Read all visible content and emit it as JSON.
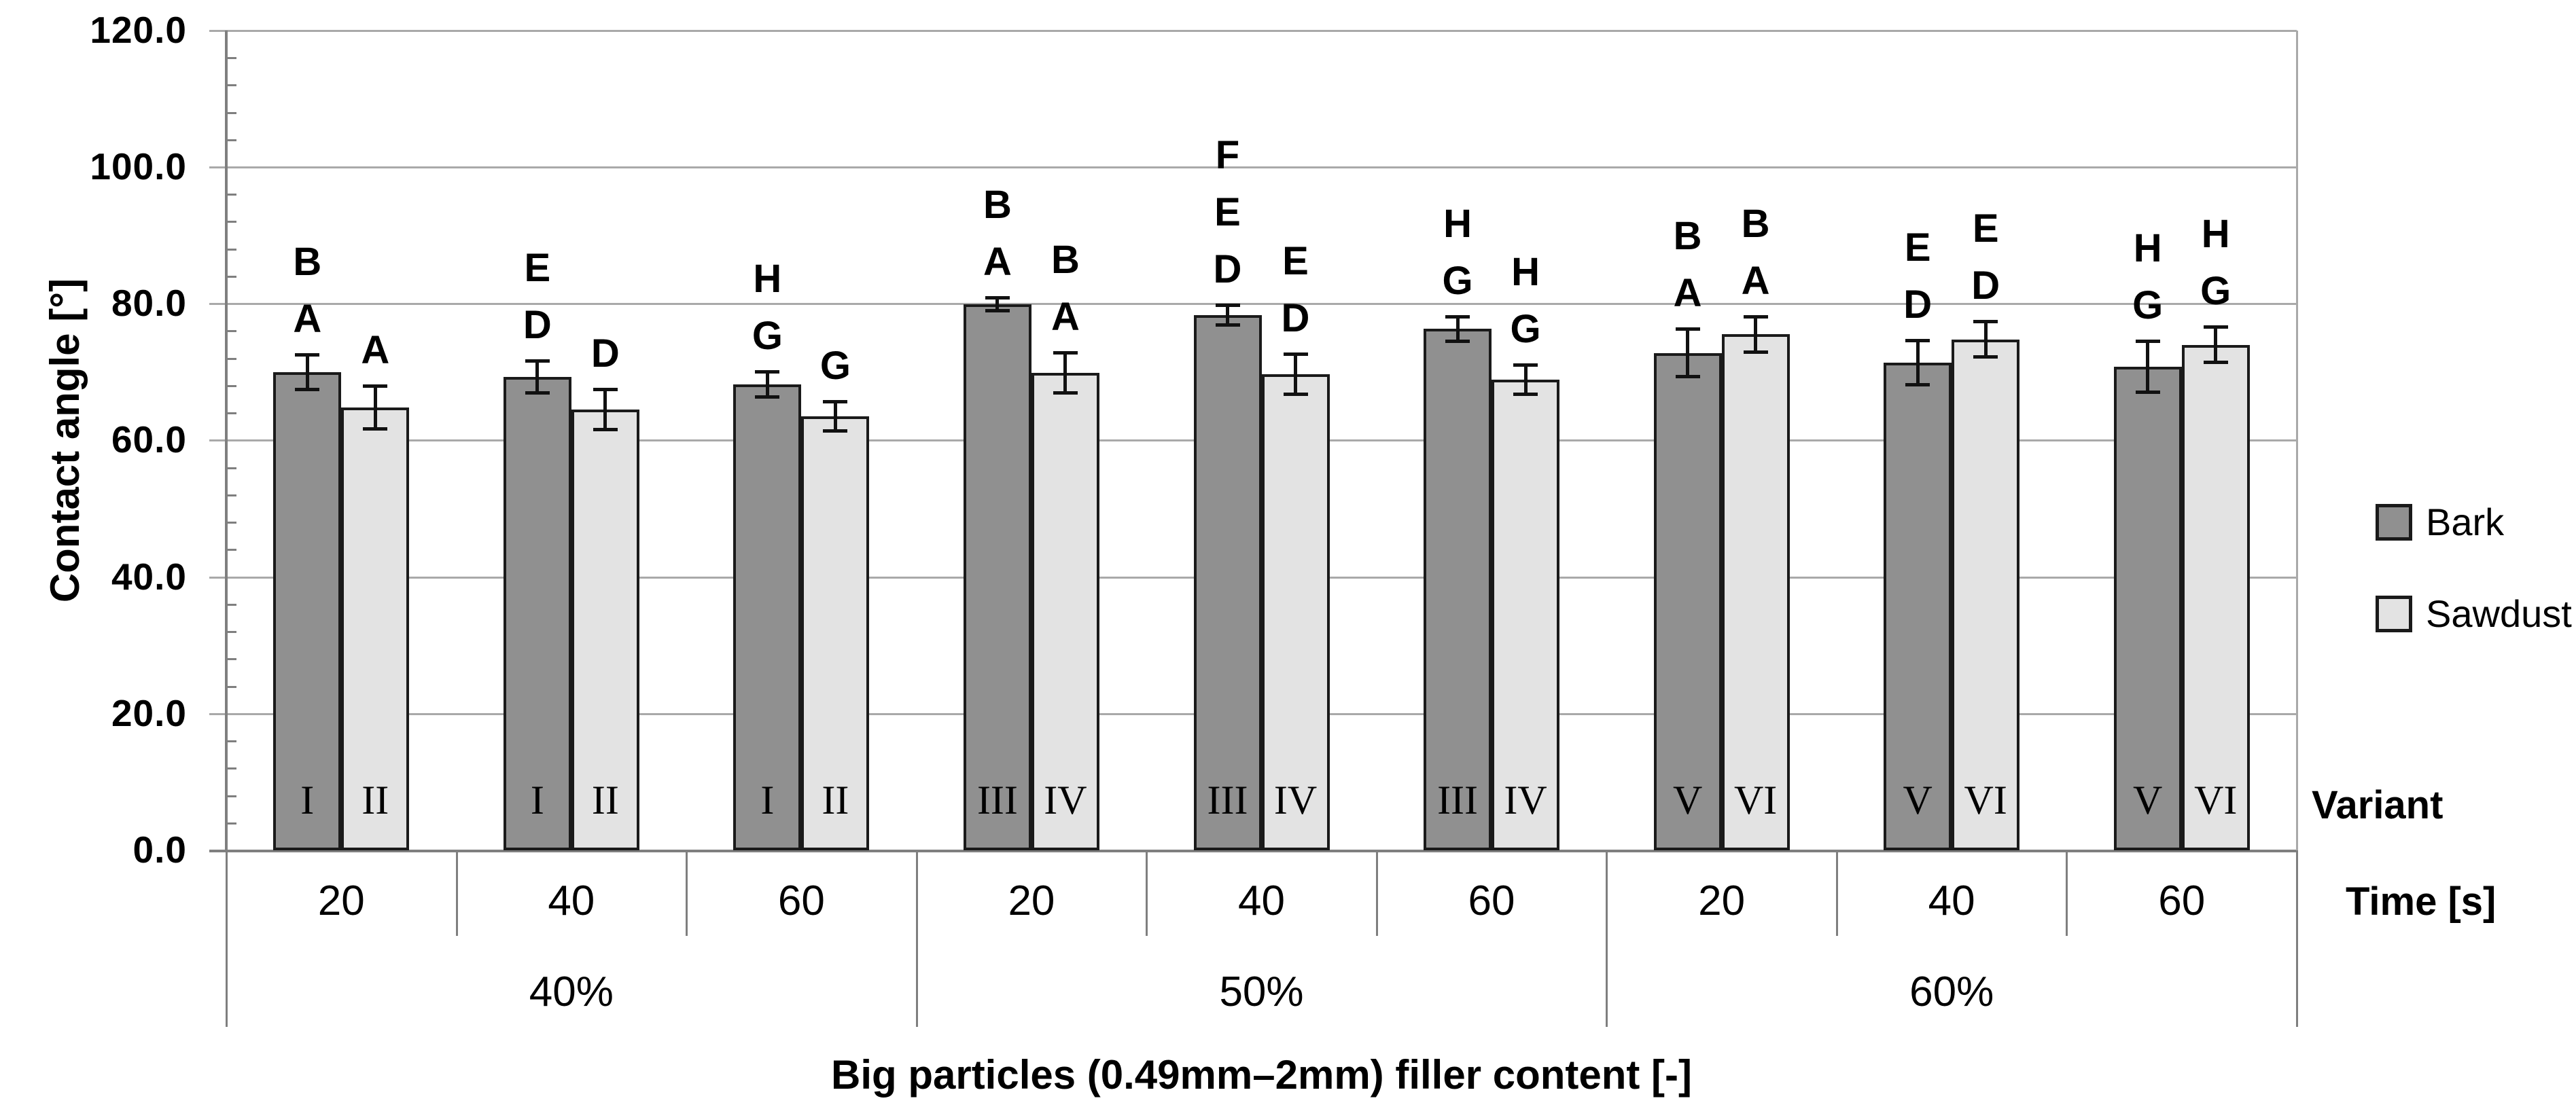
{
  "chart_data": {
    "type": "bar",
    "title": "",
    "ylabel": "Contact angle [°]",
    "xlabel": "Big particles (0.49mm–2mm) filler content [-]",
    "ylim": [
      0,
      120
    ],
    "ytick_step": 20,
    "ytick_labels": [
      "0.0",
      "20.0",
      "40.0",
      "60.0",
      "80.0",
      "100.0",
      "120.0"
    ],
    "minor_tick_step": 4,
    "grid": true,
    "legend_position": "right",
    "axis_side_labels": {
      "variant": "Variant",
      "time": "Time [s]"
    },
    "filler_groups": [
      "40%",
      "50%",
      "60%"
    ],
    "times": [
      "20",
      "40",
      "60"
    ],
    "series": [
      {
        "name": "Bark",
        "color": "#909090",
        "values": [
          70.0,
          69.3,
          68.2,
          79.9,
          78.3,
          76.3,
          72.8,
          71.4,
          70.8
        ],
        "errors": [
          2.6,
          2.4,
          1.9,
          1.0,
          1.5,
          1.8,
          3.5,
          3.3,
          3.8
        ],
        "letters": [
          [
            "A",
            "B"
          ],
          [
            "D",
            "E"
          ],
          [
            "G",
            "H"
          ],
          [
            "A",
            "B"
          ],
          [
            "D",
            "E",
            "F"
          ],
          [
            "G",
            "H"
          ],
          [
            "A",
            "B"
          ],
          [
            "D",
            "E"
          ],
          [
            "G",
            "H"
          ]
        ],
        "variants": [
          "I",
          "I",
          "I",
          "III",
          "III",
          "III",
          "V",
          "V",
          "V"
        ]
      },
      {
        "name": "Sawdust",
        "color": "#e3e3e3",
        "values": [
          64.8,
          64.5,
          63.5,
          69.9,
          69.7,
          68.9,
          75.5,
          74.8,
          74.0
        ],
        "errors": [
          3.2,
          3.0,
          2.2,
          3.0,
          3.0,
          2.2,
          2.6,
          2.6,
          2.6
        ],
        "letters": [
          [
            "A"
          ],
          [
            "D"
          ],
          [
            "G"
          ],
          [
            "A",
            "B"
          ],
          [
            "D",
            "E"
          ],
          [
            "G",
            "H"
          ],
          [
            "A",
            "B"
          ],
          [
            "D",
            "E"
          ],
          [
            "G",
            "H"
          ]
        ],
        "variants": [
          "II",
          "II",
          "II",
          "IV",
          "IV",
          "IV",
          "VI",
          "VI",
          "VI"
        ]
      }
    ],
    "colors": {
      "grid": "#a9a9a9",
      "axis": "#7f7f7f",
      "bar_border": "#1a1a1a",
      "text": "#000000"
    }
  }
}
